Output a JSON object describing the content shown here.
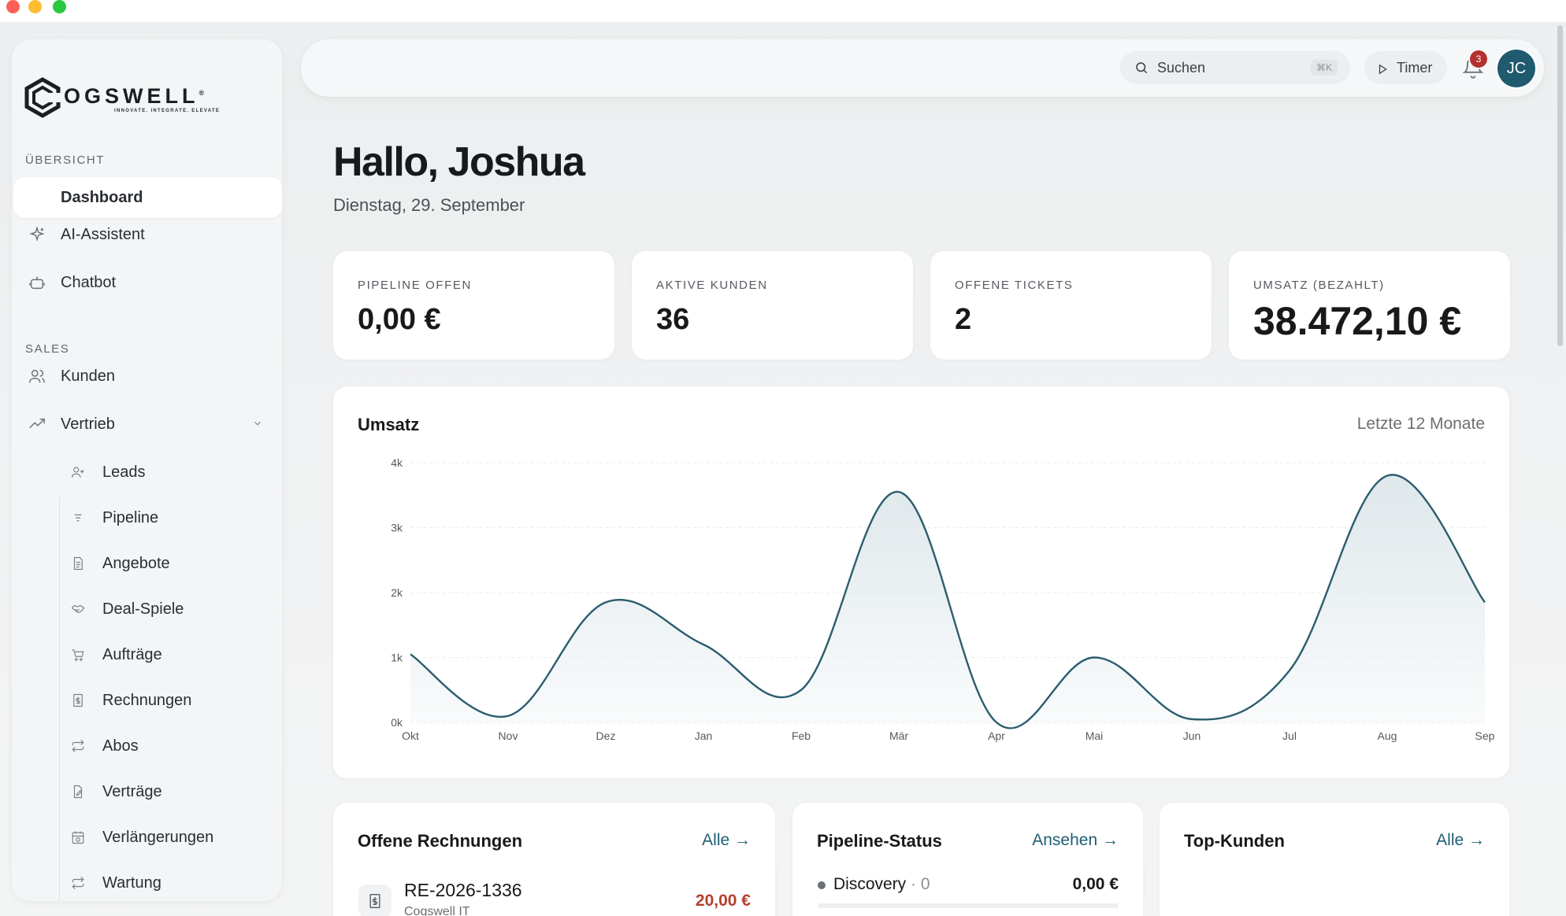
{
  "window": {
    "controls": [
      "close",
      "minimize",
      "maximize"
    ]
  },
  "brand": {
    "name": "OGSWELL",
    "registered": "®",
    "tagline": "INNOVATE. INTEGRATE. ELEVATE"
  },
  "sidebar": {
    "sections": [
      {
        "title": "ÜBERSICHT"
      },
      {
        "title": "SALES"
      }
    ],
    "items": [
      {
        "label": "Dashboard",
        "icon": "dashboard-icon",
        "active": true
      },
      {
        "label": "AI-Assistent",
        "icon": "sparkle-icon"
      },
      {
        "label": "Chatbot",
        "icon": "bot-icon"
      },
      {
        "label": "Kunden",
        "icon": "users-icon"
      },
      {
        "label": "Vertrieb",
        "icon": "trending-up-icon",
        "expanded": true
      }
    ],
    "subitems": [
      {
        "label": "Leads",
        "icon": "user-plus-icon"
      },
      {
        "label": "Pipeline",
        "icon": "list-icon"
      },
      {
        "label": "Angebote",
        "icon": "document-icon"
      },
      {
        "label": "Deal-Spiele",
        "icon": "handshake-icon"
      },
      {
        "label": "Aufträge",
        "icon": "cart-icon"
      },
      {
        "label": "Rechnungen",
        "icon": "invoice-icon"
      },
      {
        "label": "Abos",
        "icon": "repeat-icon"
      },
      {
        "label": "Verträge",
        "icon": "contract-icon"
      },
      {
        "label": "Verlängerungen",
        "icon": "calendar-repeat-icon"
      },
      {
        "label": "Wartung",
        "icon": "repeat-icon"
      }
    ]
  },
  "topbar": {
    "search": {
      "placeholder": "Suchen",
      "shortcut": "⌘K"
    },
    "timer_label": "Timer",
    "notifications_count": "3",
    "avatar_initials": "JC"
  },
  "header": {
    "greeting": "Hallo, Joshua",
    "date": "Dienstag, 29. September"
  },
  "stats": [
    {
      "label": "PIPELINE OFFEN",
      "value": "0,00 €"
    },
    {
      "label": "AKTIVE KUNDEN",
      "value": "36"
    },
    {
      "label": "OFFENE TICKETS",
      "value": "2"
    },
    {
      "label": "UMSATZ (BEZAHLT)",
      "value": "38.472,10 €"
    }
  ],
  "revenue": {
    "title": "Umsatz",
    "range": "Letzte 12 Monate"
  },
  "chart_data": {
    "type": "area",
    "title": "Umsatz",
    "categories": [
      "Okt",
      "Nov",
      "Dez",
      "Jan",
      "Feb",
      "Mär",
      "Apr",
      "Mai",
      "Jun",
      "Jul",
      "Aug",
      "Sep"
    ],
    "values": [
      1050,
      100,
      1850,
      1200,
      500,
      3550,
      0,
      1000,
      50,
      800,
      3800,
      1850
    ],
    "ylim": [
      0,
      4000
    ],
    "yticks": [
      "0k",
      "1k",
      "2k",
      "3k",
      "4k"
    ],
    "grid": true,
    "colors": {
      "line": "#2b5d6e",
      "fill": "#dbe5e9"
    }
  },
  "invoices": {
    "title": "Offene Rechnungen",
    "link": "Alle →",
    "items": [
      {
        "id": "RE-2026-1336",
        "customer": "Cogswell IT",
        "amount": "20,00 €"
      }
    ]
  },
  "pipeline_status": {
    "title": "Pipeline-Status",
    "link": "Ansehen →",
    "items": [
      {
        "name": "Discovery",
        "count": "· 0",
        "value": "0,00 €"
      }
    ]
  },
  "top_customers": {
    "title": "Top-Kunden",
    "link": "Alle →"
  }
}
